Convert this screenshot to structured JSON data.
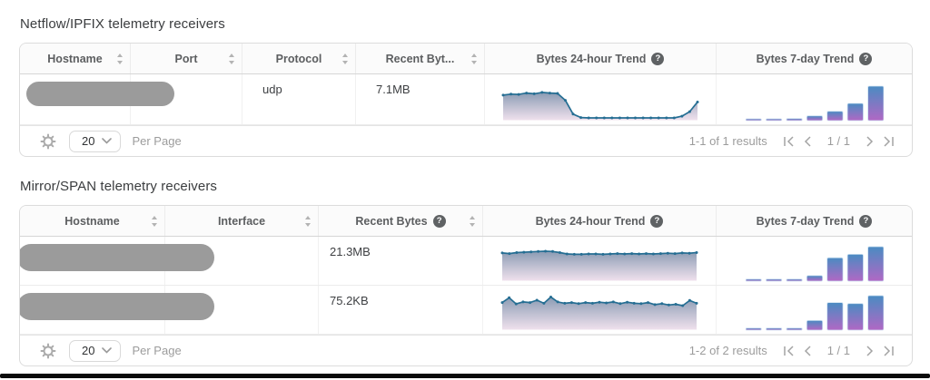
{
  "colors": {
    "line": "#256e93",
    "area_top": "#7f92ac",
    "area_bottom": "#ecdbe9",
    "bar_top": "#4a8bc2",
    "bar_bottom": "#b168c4",
    "bar_stroke": "#cfe2f2"
  },
  "icons": {
    "help": "?"
  },
  "netflow": {
    "title": "Netflow/IPFIX telemetry receivers",
    "columns": [
      {
        "label": "Hostname"
      },
      {
        "label": "Port"
      },
      {
        "label": "Protocol"
      },
      {
        "label": "Recent Byt..."
      },
      {
        "label": "Bytes 24-hour Trend"
      },
      {
        "label": "Bytes 7-day Trend"
      }
    ],
    "rows": [
      {
        "hostname": "",
        "port": "",
        "protocol": "udp",
        "recent_bytes": "7.1MB",
        "trend_24h": [
          0.7,
          0.73,
          0.72,
          0.76,
          0.74,
          0.78,
          0.76,
          0.75,
          0.55,
          0.15,
          0.05,
          0.04,
          0.04,
          0.04,
          0.04,
          0.04,
          0.04,
          0.04,
          0.04,
          0.04,
          0.04,
          0.04,
          0.04,
          0.09,
          0.22,
          0.5
        ],
        "trend_7d": [
          0.05,
          0.05,
          0.06,
          0.14,
          0.27,
          0.5,
          1.0
        ]
      }
    ],
    "footer": {
      "per_page": "20",
      "per_page_label": "Per Page",
      "results": "1-1 of 1 results",
      "page": "1 / 1"
    }
  },
  "mirror": {
    "title": "Mirror/SPAN telemetry receivers",
    "columns": [
      {
        "label": "Hostname"
      },
      {
        "label": "Interface"
      },
      {
        "label": "Recent Bytes"
      },
      {
        "label": "Bytes 24-hour Trend"
      },
      {
        "label": "Bytes 7-day Trend"
      }
    ],
    "rows": [
      {
        "hostname": "",
        "interface": "",
        "recent_bytes": "21.3MB",
        "trend_24h": [
          0.78,
          0.76,
          0.79,
          0.8,
          0.81,
          0.82,
          0.83,
          0.82,
          0.79,
          0.75,
          0.74,
          0.74,
          0.75,
          0.75,
          0.74,
          0.75,
          0.76,
          0.75,
          0.76,
          0.75,
          0.76,
          0.75,
          0.76,
          0.77,
          0.76,
          0.78,
          0.77,
          0.79
        ],
        "trend_7d": [
          0.06,
          0.06,
          0.06,
          0.16,
          0.68,
          0.78,
          1.0
        ]
      },
      {
        "hostname": "",
        "interface": "",
        "recent_bytes": "75.2KB",
        "trend_24h": [
          0.76,
          0.9,
          0.72,
          0.78,
          0.76,
          0.83,
          0.74,
          0.92,
          0.78,
          0.74,
          0.76,
          0.73,
          0.76,
          0.74,
          0.77,
          0.75,
          0.78,
          0.73,
          0.77,
          0.74,
          0.73,
          0.76,
          0.7,
          0.73,
          0.69,
          0.71,
          0.67,
          0.82,
          0.74
        ],
        "trend_7d": [
          0.06,
          0.06,
          0.06,
          0.28,
          0.8,
          0.77,
          1.0
        ]
      }
    ],
    "footer": {
      "per_page": "20",
      "per_page_label": "Per Page",
      "results": "1-2 of 2 results",
      "page": "1 / 1"
    }
  }
}
